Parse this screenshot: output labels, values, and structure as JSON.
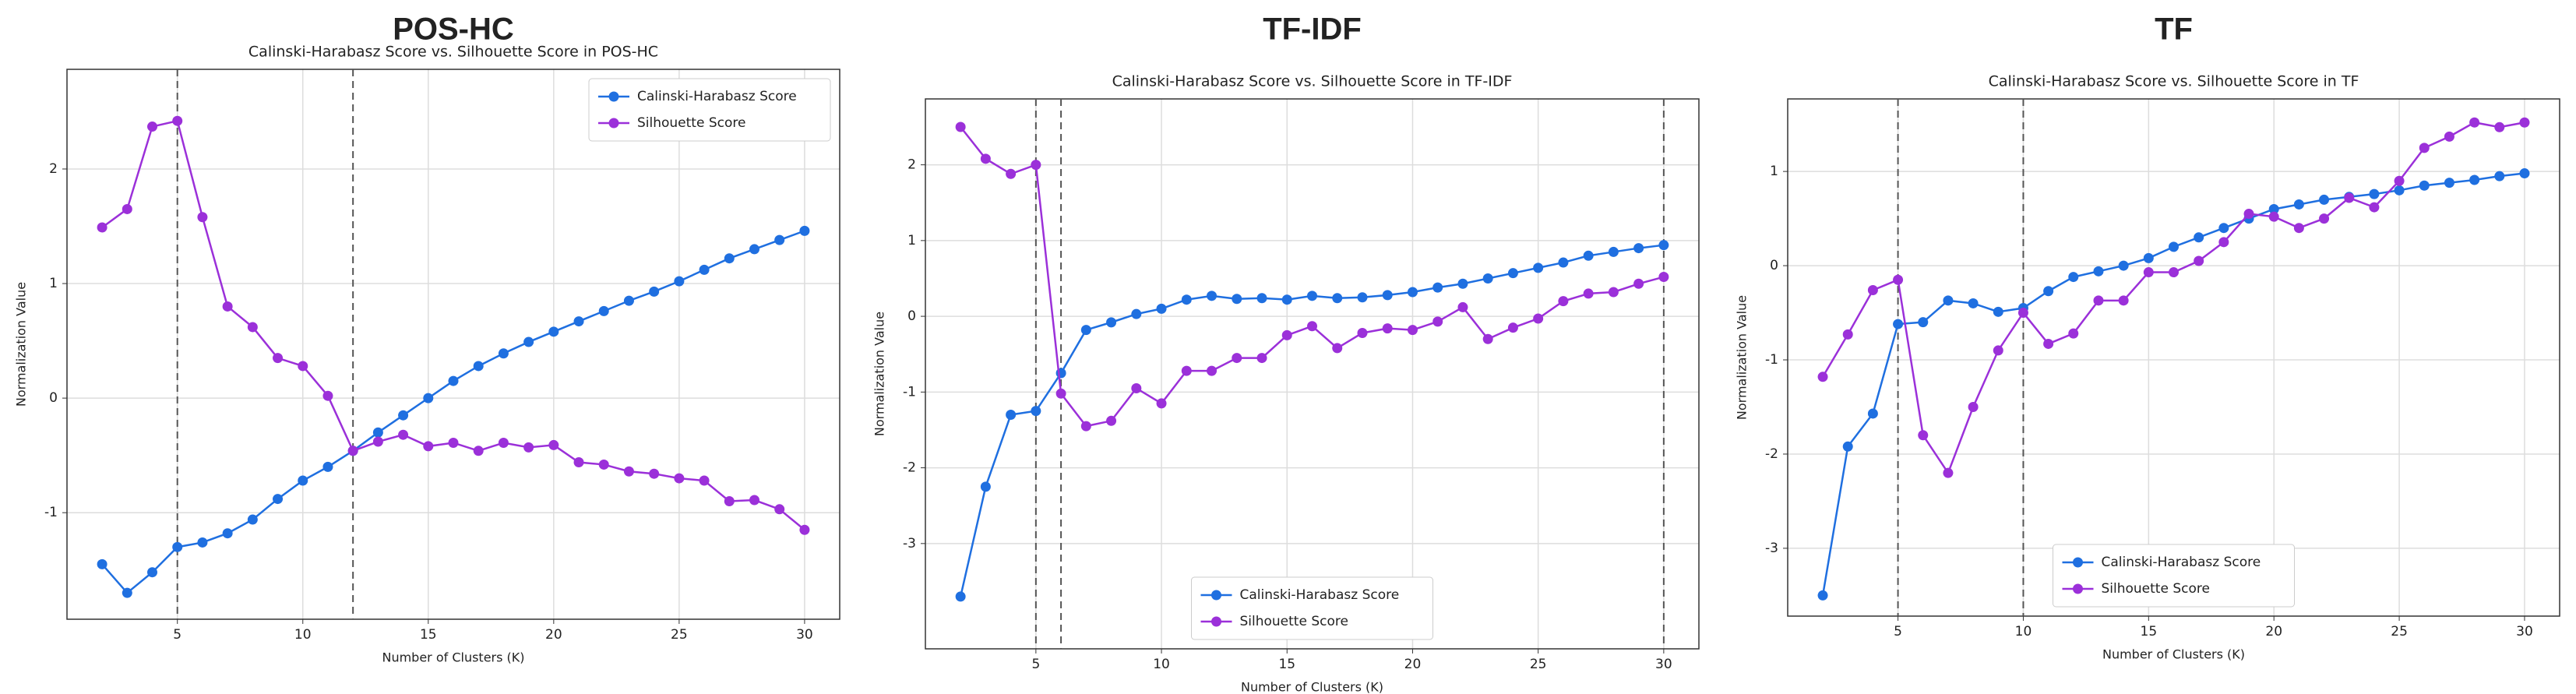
{
  "chart_data": [
    {
      "type": "line",
      "heading": "POS-HC",
      "title": "Calinski-Harabasz Score vs. Silhouette Score in POS-HC",
      "xlabel": "Number of Clusters (K)",
      "ylabel": "Normalization Value",
      "x": [
        2,
        3,
        4,
        5,
        6,
        7,
        8,
        9,
        10,
        11,
        12,
        13,
        14,
        15,
        16,
        17,
        18,
        19,
        20,
        21,
        22,
        23,
        24,
        25,
        26,
        27,
        28,
        29,
        30
      ],
      "series": [
        {
          "name": "Calinski-Harabasz Score",
          "color": "#1f6fe0",
          "values": [
            -1.45,
            -1.7,
            -1.52,
            -1.3,
            -1.26,
            -1.18,
            -1.06,
            -0.88,
            -0.72,
            -0.6,
            -0.46,
            -0.3,
            -0.15,
            0.0,
            0.15,
            0.28,
            0.39,
            0.49,
            0.58,
            0.67,
            0.76,
            0.85,
            0.93,
            1.02,
            1.12,
            1.22,
            1.3,
            1.38,
            1.46
          ]
        },
        {
          "name": "Silhouette Score",
          "color": "#9b30d9",
          "values": [
            1.49,
            1.65,
            2.37,
            2.42,
            1.58,
            0.8,
            0.62,
            0.35,
            0.28,
            0.02,
            -0.46,
            -0.38,
            -0.32,
            -0.42,
            -0.39,
            -0.46,
            -0.39,
            -0.43,
            -0.41,
            -0.56,
            -0.58,
            -0.64,
            -0.66,
            -0.7,
            -0.72,
            -0.9,
            -0.89,
            -0.97,
            -1.15
          ]
        }
      ],
      "xlim": [
        0.6,
        31.4
      ],
      "xticks": [
        5,
        10,
        15,
        20,
        25,
        30
      ],
      "ylim": [
        -1.93,
        2.87
      ],
      "yticks": [
        -1,
        0,
        1,
        2
      ],
      "vlines": [
        5,
        12
      ],
      "grid": true,
      "legend": "upper right"
    },
    {
      "type": "line",
      "heading": "TF-IDF",
      "title": "Calinski-Harabasz Score vs. Silhouette Score in TF-IDF",
      "xlabel": "Number of Clusters (K)",
      "ylabel": "Normalization Value",
      "x": [
        2,
        3,
        4,
        5,
        6,
        7,
        8,
        9,
        10,
        11,
        12,
        13,
        14,
        15,
        16,
        17,
        18,
        19,
        20,
        21,
        22,
        23,
        24,
        25,
        26,
        27,
        28,
        29,
        30
      ],
      "series": [
        {
          "name": "Calinski-Harabasz Score",
          "color": "#1f6fe0",
          "values": [
            -3.7,
            -2.25,
            -1.3,
            -1.25,
            -0.75,
            -0.18,
            -0.08,
            0.03,
            0.1,
            0.22,
            0.27,
            0.23,
            0.24,
            0.22,
            0.27,
            0.24,
            0.25,
            0.28,
            0.32,
            0.38,
            0.43,
            0.5,
            0.57,
            0.64,
            0.71,
            0.8,
            0.85,
            0.9,
            0.94
          ]
        },
        {
          "name": "Silhouette Score",
          "color": "#9b30d9",
          "values": [
            2.5,
            2.08,
            1.88,
            2.0,
            -1.02,
            -1.45,
            -1.38,
            -0.95,
            -1.15,
            -0.72,
            -0.72,
            -0.55,
            -0.55,
            -0.25,
            -0.13,
            -0.42,
            -0.22,
            -0.16,
            -0.18,
            -0.07,
            0.12,
            -0.3,
            -0.15,
            -0.03,
            0.2,
            0.3,
            0.32,
            0.43,
            0.52
          ]
        }
      ],
      "xlim": [
        0.6,
        31.4
      ],
      "xticks": [
        5,
        10,
        15,
        20,
        25,
        30
      ],
      "ylim": [
        -4.39,
        2.87
      ],
      "yticks": [
        -3,
        -2,
        -1,
        0,
        1,
        2
      ],
      "vlines": [
        5,
        6,
        30
      ],
      "grid": true,
      "legend": "lower center"
    },
    {
      "type": "line",
      "heading": "TF",
      "title": "Calinski-Harabasz Score vs. Silhouette Score in TF",
      "xlabel": "Number of Clusters (K)",
      "ylabel": "Normalization Value",
      "x": [
        2,
        3,
        4,
        5,
        6,
        7,
        8,
        9,
        10,
        11,
        12,
        13,
        14,
        15,
        16,
        17,
        18,
        19,
        20,
        21,
        22,
        23,
        24,
        25,
        26,
        27,
        28,
        29,
        30
      ],
      "series": [
        {
          "name": "Calinski-Harabasz Score",
          "color": "#1f6fe0",
          "values": [
            -3.5,
            -1.92,
            -1.57,
            -0.62,
            -0.6,
            -0.37,
            -0.4,
            -0.49,
            -0.45,
            -0.27,
            -0.12,
            -0.06,
            0.0,
            0.08,
            0.2,
            0.3,
            0.4,
            0.5,
            0.6,
            0.65,
            0.7,
            0.73,
            0.76,
            0.8,
            0.85,
            0.88,
            0.91,
            0.95,
            0.98
          ]
        },
        {
          "name": "Silhouette Score",
          "color": "#9b30d9",
          "values": [
            -1.18,
            -0.73,
            -0.26,
            -0.15,
            -1.8,
            -2.2,
            -1.5,
            -0.9,
            -0.5,
            -0.83,
            -0.72,
            -0.37,
            -0.37,
            -0.07,
            -0.07,
            0.05,
            0.25,
            0.55,
            0.52,
            0.4,
            0.5,
            0.72,
            0.62,
            0.9,
            1.25,
            1.37,
            1.52,
            1.47,
            1.52
          ]
        }
      ],
      "xlim": [
        0.6,
        31.4
      ],
      "xticks": [
        5,
        10,
        15,
        20,
        25,
        30
      ],
      "ylim": [
        -3.72,
        1.77
      ],
      "yticks": [
        -3,
        -2,
        -1,
        0,
        1
      ],
      "vlines": [
        5,
        10
      ],
      "grid": true,
      "legend": "lower center"
    }
  ]
}
